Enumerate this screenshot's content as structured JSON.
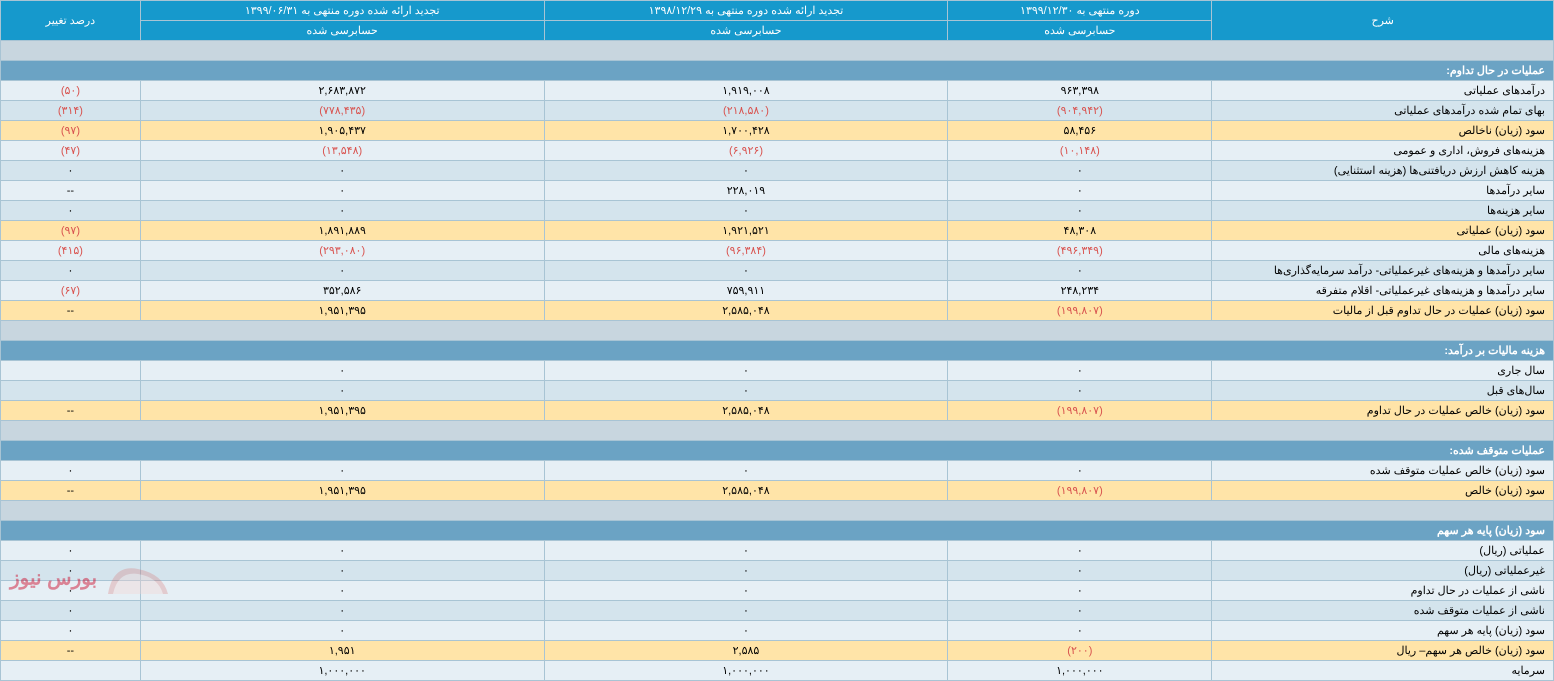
{
  "colors": {
    "header_bg": "#1699cc",
    "section_bg": "#6ba3c4",
    "highlight_bg": "#ffe4a8",
    "normal_bg": "#e6eff5",
    "alt_bg": "#d4e4ed",
    "gray_bg": "#c8d6df",
    "border": "#a8c4d4",
    "negative": "#d9534f"
  },
  "col_widths": {
    "label": "22%",
    "c1": "17%",
    "c2": "26%",
    "c3": "26%",
    "c4": "9%"
  },
  "headers": {
    "top": {
      "desc": "شرح",
      "p1": "دوره منتهی به ۱۳۹۹/۱۲/۳۰",
      "p2": "تجدید ارائه شده دوره منتهی به ۱۳۹۸/۱۲/۲۹",
      "p3": "تجدید ارائه شده دوره منتهی به ۱۳۹۹/۰۶/۳۱",
      "chg": "درصد تغییر"
    },
    "sub": {
      "p1": "حسابرسی شده",
      "p2": "حسابرسی شده",
      "p3": "حسابرسی شده"
    }
  },
  "rows": [
    {
      "type": "gray"
    },
    {
      "type": "section",
      "label": "عملیات در حال تداوم:"
    },
    {
      "type": "normal",
      "label": "درآمدهای عملیاتی",
      "c1": "۹۶۳,۳۹۸",
      "c2": "۱,۹۱۹,۰۰۸",
      "c3": "۲,۶۸۳,۸۷۲",
      "chg": "(۵۰)",
      "chg_neg": true
    },
    {
      "type": "alt",
      "label": "بهای تمام شده درآمدهای عملیاتی",
      "c1": "(۹۰۴,۹۴۲)",
      "c1_neg": true,
      "c2": "(۲۱۸,۵۸۰)",
      "c2_neg": true,
      "c3": "(۷۷۸,۴۳۵)",
      "c3_neg": true,
      "chg": "(۳۱۴)",
      "chg_neg": true
    },
    {
      "type": "highlight",
      "label": "سود (زیان) ناخالص",
      "c1": "۵۸,۴۵۶",
      "c2": "۱,۷۰۰,۴۲۸",
      "c3": "۱,۹۰۵,۴۳۷",
      "chg": "(۹۷)",
      "chg_neg": true
    },
    {
      "type": "normal",
      "label": "هزینه‌های فروش، اداری و عمومی",
      "c1": "(۱۰,۱۴۸)",
      "c1_neg": true,
      "c2": "(۶,۹۲۶)",
      "c2_neg": true,
      "c3": "(۱۳,۵۴۸)",
      "c3_neg": true,
      "chg": "(۴۷)",
      "chg_neg": true
    },
    {
      "type": "alt",
      "label": "هزینه کاهش ارزش دریافتنی‌ها (هزینه استثنایی)",
      "c1": "۰",
      "c2": "۰",
      "c3": "۰",
      "chg": "۰"
    },
    {
      "type": "normal",
      "label": "سایر درآمدها",
      "c1": "۰",
      "c2": "۲۲۸,۰۱۹",
      "c3": "۰",
      "chg": "--"
    },
    {
      "type": "alt",
      "label": "سایر هزینه‌ها",
      "c1": "۰",
      "c2": "۰",
      "c3": "۰",
      "chg": "۰"
    },
    {
      "type": "highlight",
      "label": "سود (زیان) عملیاتی",
      "c1": "۴۸,۳۰۸",
      "c2": "۱,۹۲۱,۵۲۱",
      "c3": "۱,۸۹۱,۸۸۹",
      "chg": "(۹۷)",
      "chg_neg": true
    },
    {
      "type": "normal",
      "label": "هزینه‌های مالی",
      "c1": "(۴۹۶,۳۴۹)",
      "c1_neg": true,
      "c2": "(۹۶,۳۸۴)",
      "c2_neg": true,
      "c3": "(۲۹۳,۰۸۰)",
      "c3_neg": true,
      "chg": "(۴۱۵)",
      "chg_neg": true
    },
    {
      "type": "alt",
      "label": "سایر درآمدها و هزینه‌های غیرعملیاتی- درآمد سرمایه‌گذاری‌ها",
      "c1": "۰",
      "c2": "۰",
      "c3": "۰",
      "chg": "۰"
    },
    {
      "type": "normal",
      "label": "سایر درآمدها و هزینه‌های غیرعملیاتی- اقلام متفرقه",
      "c1": "۲۴۸,۲۳۴",
      "c2": "۷۵۹,۹۱۱",
      "c3": "۳۵۲,۵۸۶",
      "chg": "(۶۷)",
      "chg_neg": true
    },
    {
      "type": "highlight",
      "label": "سود (زیان) عملیات در حال تداوم قبل از مالیات",
      "c1": "(۱۹۹,۸۰۷)",
      "c1_neg": true,
      "c2": "۲,۵۸۵,۰۴۸",
      "c3": "۱,۹۵۱,۳۹۵",
      "chg": "--"
    },
    {
      "type": "gray"
    },
    {
      "type": "section",
      "label": "هزینه مالیات بر درآمد:"
    },
    {
      "type": "normal",
      "label": "سال جاری",
      "c1": "۰",
      "c2": "۰",
      "c3": "۰",
      "chg": ""
    },
    {
      "type": "alt",
      "label": "سال‌های قبل",
      "c1": "۰",
      "c2": "۰",
      "c3": "۰",
      "chg": ""
    },
    {
      "type": "highlight",
      "label": "سود (زیان) خالص عملیات در حال تداوم",
      "c1": "(۱۹۹,۸۰۷)",
      "c1_neg": true,
      "c2": "۲,۵۸۵,۰۴۸",
      "c3": "۱,۹۵۱,۳۹۵",
      "chg": "--"
    },
    {
      "type": "gray"
    },
    {
      "type": "section",
      "label": "عملیات متوقف شده:"
    },
    {
      "type": "normal",
      "label": "سود (زیان) خالص عملیات متوقف شده",
      "c1": "۰",
      "c2": "۰",
      "c3": "۰",
      "chg": "۰"
    },
    {
      "type": "highlight",
      "label": "سود (زیان) خالص",
      "c1": "(۱۹۹,۸۰۷)",
      "c1_neg": true,
      "c2": "۲,۵۸۵,۰۴۸",
      "c3": "۱,۹۵۱,۳۹۵",
      "chg": "--"
    },
    {
      "type": "gray"
    },
    {
      "type": "section",
      "label": "سود (زیان) پایه هر سهم"
    },
    {
      "type": "normal",
      "label": "عملیاتی (ریال)",
      "c1": "۰",
      "c2": "۰",
      "c3": "۰",
      "chg": "۰"
    },
    {
      "type": "alt",
      "label": "غیرعملیاتی (ریال)",
      "c1": "۰",
      "c2": "۰",
      "c3": "۰",
      "chg": "۰"
    },
    {
      "type": "normal",
      "label": "ناشی از عملیات در حال تداوم",
      "c1": "۰",
      "c2": "۰",
      "c3": "۰",
      "chg": "۰"
    },
    {
      "type": "alt",
      "label": "ناشی از عملیات متوقف شده",
      "c1": "۰",
      "c2": "۰",
      "c3": "۰",
      "chg": "۰"
    },
    {
      "type": "normal",
      "label": "سود (زیان) پایه هر سهم",
      "c1": "۰",
      "c2": "۰",
      "c3": "۰",
      "chg": "۰"
    },
    {
      "type": "highlight",
      "label": "سود (زیان) خالص هر سهم– ریال",
      "c1": "(۲۰۰)",
      "c1_neg": true,
      "c2": "۲,۵۸۵",
      "c3": "۱,۹۵۱",
      "chg": "--"
    },
    {
      "type": "normal",
      "label": "سرمایه",
      "c1": "۱,۰۰۰,۰۰۰",
      "c2": "۱,۰۰۰,۰۰۰",
      "c3": "۱,۰۰۰,۰۰۰",
      "chg": ""
    }
  ],
  "watermark": "بورس نیوز"
}
